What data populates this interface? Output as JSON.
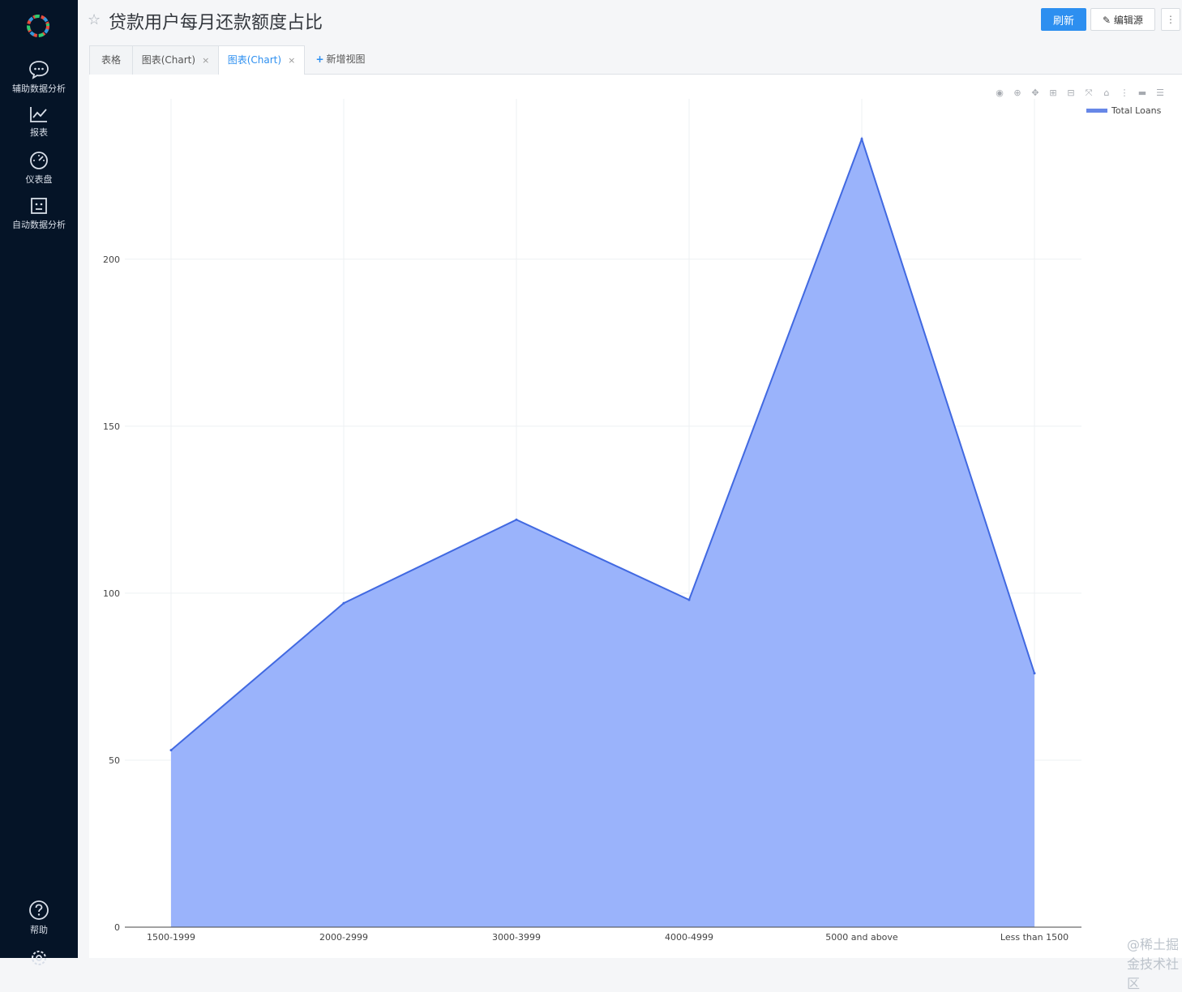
{
  "sidebar": {
    "items": [
      {
        "label": "辅助数据分析",
        "icon": "chat-icon"
      },
      {
        "label": "报表",
        "icon": "line-chart-icon"
      },
      {
        "label": "仪表盘",
        "icon": "gauge-icon"
      },
      {
        "label": "自动数据分析",
        "icon": "robot-icon"
      }
    ],
    "help_label": "帮助"
  },
  "header": {
    "title": "贷款用户每月还款额度占比",
    "refresh_label": "刷新",
    "edit_label": "编辑源",
    "more_label": "⋮"
  },
  "tabs": [
    {
      "label": "表格"
    },
    {
      "label": "图表(Chart)",
      "closable": true
    },
    {
      "label": "图表(Chart)",
      "closable": true,
      "active": true
    }
  ],
  "add_tab_label": "新增视图",
  "close_glyph": "×",
  "watermark": "@稀土掘金技术社区",
  "chart_data": {
    "type": "area",
    "categories": [
      "1500-1999",
      "2000-2999",
      "3000-3999",
      "4000-4999",
      "5000 and above",
      "Less than 1500"
    ],
    "series": [
      {
        "name": "Total Loans",
        "values": [
          53,
          97,
          122,
          98,
          236,
          76
        ],
        "color": "#4169e1",
        "fill": "#9ab3fb"
      }
    ],
    "ylim": [
      0,
      248
    ],
    "yticks": [
      0,
      50,
      100,
      150,
      200
    ],
    "grid": true,
    "legend": "top-right"
  }
}
